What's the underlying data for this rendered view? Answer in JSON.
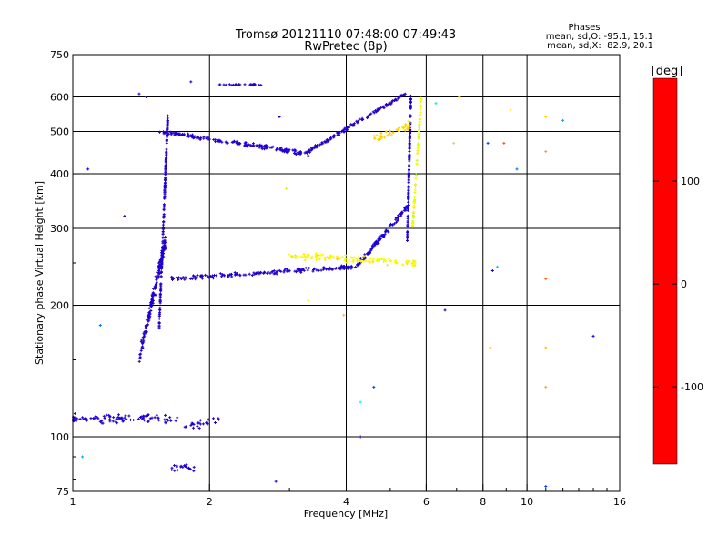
{
  "chart_data": {
    "type": "scatter",
    "title": "Tromsø 20121110 07:48:00-07:49:43",
    "subtitle": "RwPretec (8p)",
    "xlabel": "Frequency [MHz]",
    "ylabel": "Stationary phase Virtual Height [km]",
    "x_scale": "log",
    "y_scale": "log",
    "xlim": [
      1,
      16
    ],
    "ylim": [
      75,
      750
    ],
    "x_ticks": [
      1,
      2,
      4,
      6,
      8,
      10,
      16
    ],
    "y_ticks": [
      75,
      100,
      200,
      300,
      400,
      500,
      600,
      750
    ],
    "grid": true,
    "stats": {
      "heading": "Phases",
      "line_o": "mean, sd,O: -95.1, 15.1",
      "line_x": "mean, sd,X:  82.9, 20.1"
    },
    "colorbar": {
      "label": "[deg]",
      "ticks": [
        100,
        0,
        -100
      ],
      "colors": [
        "#ff0000",
        "#ff8000",
        "#ffff00",
        "#00ff00",
        "#00ffff",
        "#0080ff",
        "#0000ff",
        "#4000a0",
        "#000000"
      ]
    },
    "series": [
      {
        "color_mode": "phase",
        "traces": [
          {
            "f0": 1.0,
            "f1": 1.7,
            "h0": 110,
            "h1": 110,
            "n": 90,
            "phase": -105,
            "jitter_h": 0.035
          },
          {
            "f0": 1.55,
            "f1": 1.62,
            "h0": 180,
            "h1": 550,
            "n": 180,
            "phase": -105,
            "jitter_h": 0.03
          },
          {
            "f0": 1.4,
            "f1": 1.6,
            "h0": 150,
            "h1": 280,
            "n": 160,
            "phase": -105,
            "jitter_h": 0.06
          },
          {
            "f0": 1.55,
            "f1": 3.3,
            "h0": 500,
            "h1": 445,
            "n": 170,
            "phase": -105,
            "jitter_h": 0.015
          },
          {
            "f0": 3.3,
            "f1": 5.4,
            "h0": 450,
            "h1": 610,
            "n": 140,
            "phase": -110,
            "jitter_h": 0.015
          },
          {
            "f0": 1.65,
            "f1": 4.2,
            "h0": 230,
            "h1": 245,
            "n": 170,
            "phase": -105,
            "jitter_h": 0.015
          },
          {
            "f0": 4.2,
            "f1": 5.5,
            "h0": 245,
            "h1": 340,
            "n": 110,
            "phase": -100,
            "jitter_h": 0.02
          },
          {
            "f0": 5.45,
            "f1": 5.55,
            "h0": 280,
            "h1": 600,
            "n": 120,
            "phase": -100,
            "jitter_h": 0.02
          },
          {
            "f0": 3.0,
            "f1": 5.7,
            "h0": 260,
            "h1": 250,
            "n": 110,
            "phase": 110,
            "jitter_h": 0.025
          },
          {
            "f0": 5.6,
            "f1": 5.85,
            "h0": 300,
            "h1": 600,
            "n": 80,
            "phase": 105,
            "jitter_h": 0.02
          },
          {
            "f0": 4.6,
            "f1": 5.6,
            "h0": 480,
            "h1": 520,
            "n": 40,
            "phase": 120,
            "jitter_h": 0.03
          },
          {
            "f0": 2.1,
            "f1": 2.6,
            "h0": 640,
            "h1": 640,
            "n": 25,
            "phase": -105,
            "jitter_h": 0.005
          },
          {
            "f0": 1.65,
            "f1": 1.85,
            "h0": 85,
            "h1": 85,
            "n": 20,
            "phase": -105,
            "jitter_h": 0.03
          },
          {
            "f0": 1.75,
            "f1": 2.1,
            "h0": 105,
            "h1": 110,
            "n": 25,
            "phase": -105,
            "jitter_h": 0.03
          }
        ],
        "scatter": [
          {
            "x": 1.08,
            "y": 410,
            "phase": -90
          },
          {
            "x": 1.3,
            "y": 320,
            "phase": -105
          },
          {
            "x": 1.4,
            "y": 610,
            "phase": -110
          },
          {
            "x": 1.45,
            "y": 600,
            "phase": -120
          },
          {
            "x": 1.82,
            "y": 650,
            "phase": -100
          },
          {
            "x": 2.85,
            "y": 540,
            "phase": -105
          },
          {
            "x": 2.95,
            "y": 370,
            "phase": 100
          },
          {
            "x": 2.8,
            "y": 79,
            "phase": -110
          },
          {
            "x": 3.3,
            "y": 205,
            "phase": 110
          },
          {
            "x": 3.95,
            "y": 190,
            "phase": 130
          },
          {
            "x": 4.3,
            "y": 100,
            "phase": -105
          },
          {
            "x": 4.3,
            "y": 120,
            "phase": 20
          },
          {
            "x": 4.6,
            "y": 130,
            "phase": -60
          },
          {
            "x": 6.6,
            "y": 195,
            "phase": -100
          },
          {
            "x": 6.3,
            "y": 580,
            "phase": 30
          },
          {
            "x": 6.9,
            "y": 470,
            "phase": 90
          },
          {
            "x": 7.1,
            "y": 600,
            "phase": 130
          },
          {
            "x": 8.2,
            "y": 470,
            "phase": -60
          },
          {
            "x": 8.4,
            "y": 240,
            "phase": -105
          },
          {
            "x": 8.6,
            "y": 245,
            "phase": -10
          },
          {
            "x": 8.9,
            "y": 470,
            "phase": 170
          },
          {
            "x": 9.2,
            "y": 560,
            "phase": 110
          },
          {
            "x": 9.5,
            "y": 410,
            "phase": -40
          },
          {
            "x": 11.0,
            "y": 540,
            "phase": 120
          },
          {
            "x": 11.0,
            "y": 450,
            "phase": 140
          },
          {
            "x": 11.0,
            "y": 230,
            "phase": 170
          },
          {
            "x": 11.0,
            "y": 160,
            "phase": 130
          },
          {
            "x": 11.0,
            "y": 130,
            "phase": 140
          },
          {
            "x": 12.0,
            "y": 530,
            "phase": -20
          },
          {
            "x": 11.0,
            "y": 77,
            "phase": -60
          },
          {
            "x": 14.0,
            "y": 170,
            "phase": -90
          },
          {
            "x": 8.3,
            "y": 160,
            "phase": 130
          },
          {
            "x": 1.15,
            "y": 180,
            "phase": -40
          },
          {
            "x": 1.05,
            "y": 90,
            "phase": -20
          }
        ]
      }
    ]
  }
}
